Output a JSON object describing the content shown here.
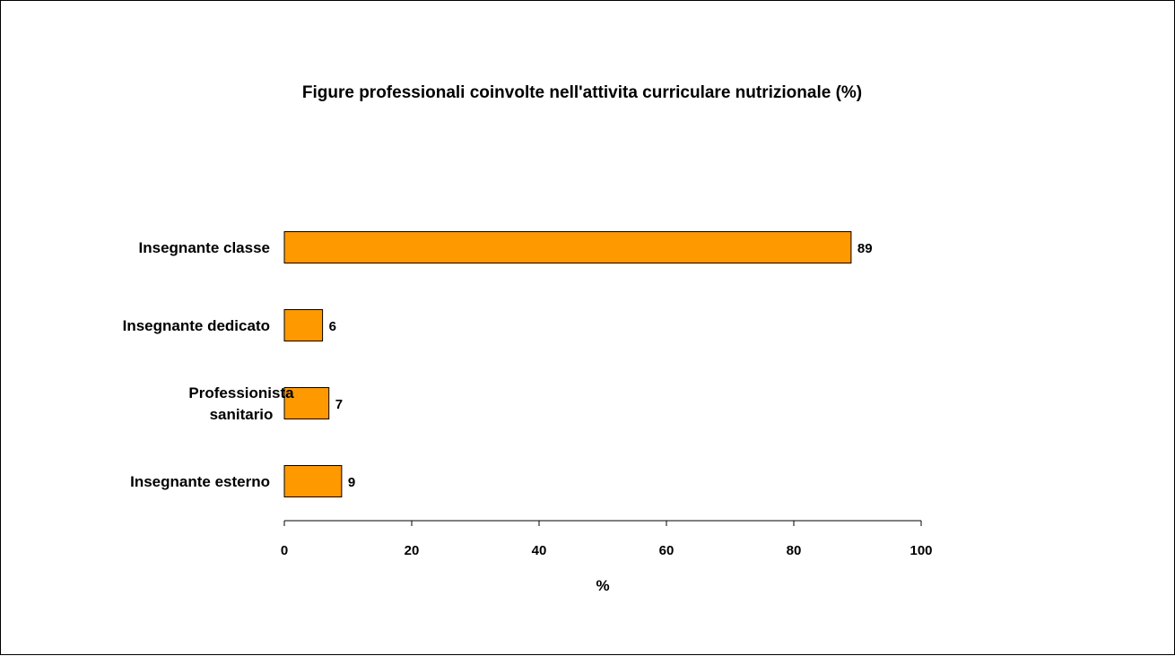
{
  "chart_data": {
    "type": "bar",
    "orientation": "horizontal",
    "title": "Figure professionali coinvolte nell'attivita curriculare nutrizionale (%)",
    "xlabel": "%",
    "ylabel": "",
    "categories": [
      [
        "Insegnante classe"
      ],
      [
        "Insegnante dedicato"
      ],
      [
        "Professionista",
        "sanitario"
      ],
      [
        "Insegnante esterno"
      ]
    ],
    "values": [
      89,
      6,
      7,
      9
    ],
    "xlim": [
      0,
      100
    ],
    "xticks": [
      "0",
      "20",
      "40",
      "60",
      "80",
      "100"
    ],
    "bar_color": "#FF9900",
    "bar_outline_color": "#000000",
    "grid": false,
    "legend": "none",
    "data_labels": true
  }
}
